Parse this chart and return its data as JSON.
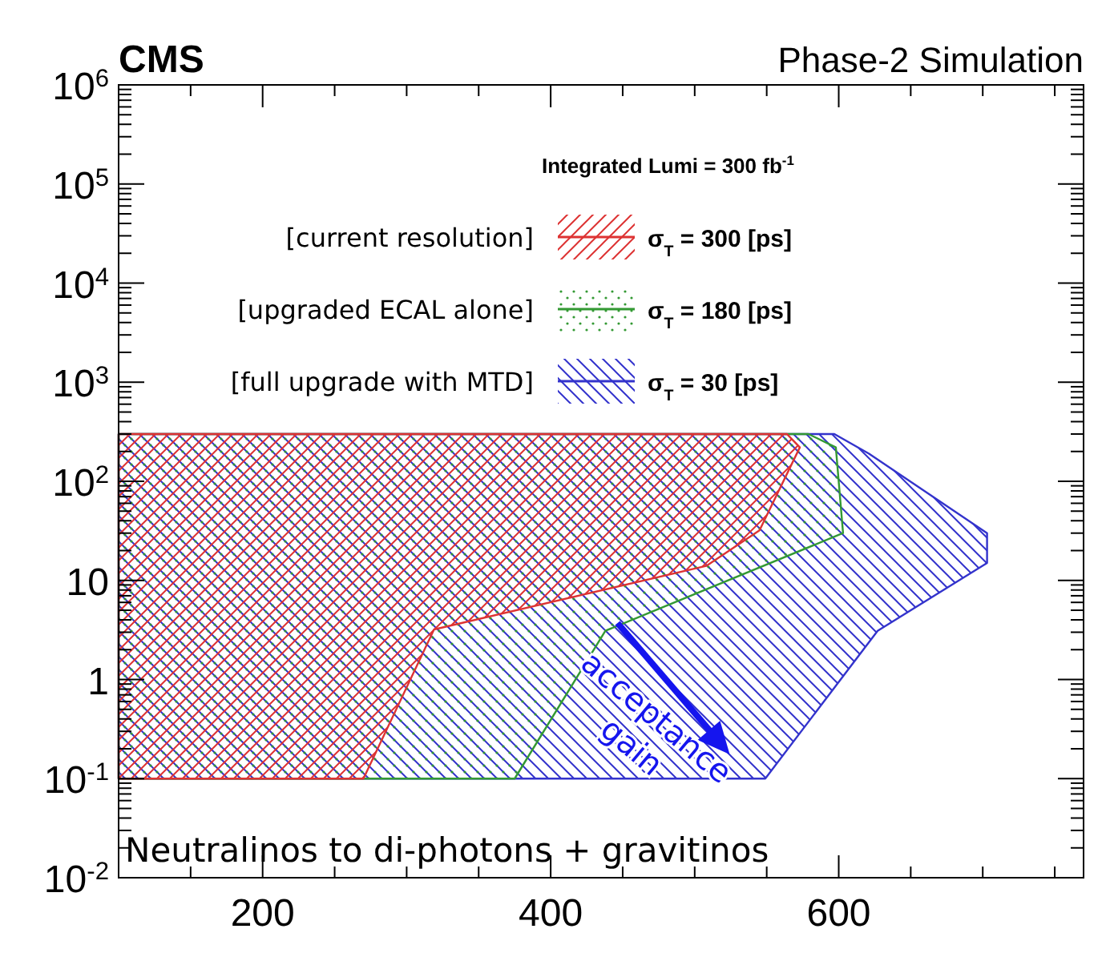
{
  "chart_data": {
    "type": "area",
    "orientation": "horizontal",
    "title": "CMS",
    "subtitle": "Phase-2 Simulation",
    "legend_title": "Integrated Lumi = 300 fb$^{-1}$",
    "legend": "top right",
    "log": "y",
    "xlim": [
      100,
      770
    ],
    "xticks": [
      200,
      400,
      600
    ],
    "ylim": [
      0.01,
      1000000
    ],
    "yticks": [
      {
        "value": 0.01,
        "label": "10$^{-2}$"
      },
      {
        "value": 0.1,
        "label": "10$^{-1}$"
      },
      1,
      10,
      {
        "value": 100,
        "label": "10$^{2}$"
      },
      {
        "value": 1000,
        "label": "10$^{3}$"
      },
      {
        "value": 10000,
        "label": "10$^{4}$"
      },
      {
        "value": 100000,
        "label": "10$^{5}$"
      },
      {
        "value": 1000000,
        "label": "10$^{6}$"
      }
    ],
    "series": [
      {
        "name": "σ$_{T}$ = 30 [ps]",
        "color": "#3333cc",
        "x": [
          0.1,
          3.1,
          15,
          30,
          190,
          300
        ],
        "values": [
          549,
          627,
          703,
          703,
          621,
          597
        ]
      },
      {
        "name": "σ$_{T}$ = 180 [ps]",
        "color": "#339933",
        "x": [
          0.1,
          3.1,
          30,
          220,
          300
        ],
        "values": [
          375,
          438,
          603,
          598,
          579
        ]
      },
      {
        "name": "σ$_{T}$ = 300 [ps]",
        "color": "#dd3333",
        "x": [
          0.1,
          3.2,
          14,
          32,
          220,
          300
        ],
        "values": [
          270,
          319,
          508,
          545,
          573,
          564
        ]
      }
    ],
    "annotations": [
      "[full upgrade with MTD]",
      "[upgraded ECAL alone]",
      "[current resolution]",
      "Neutralinos to di-photons + gravitinos",
      "acceptance gain"
    ]
  }
}
